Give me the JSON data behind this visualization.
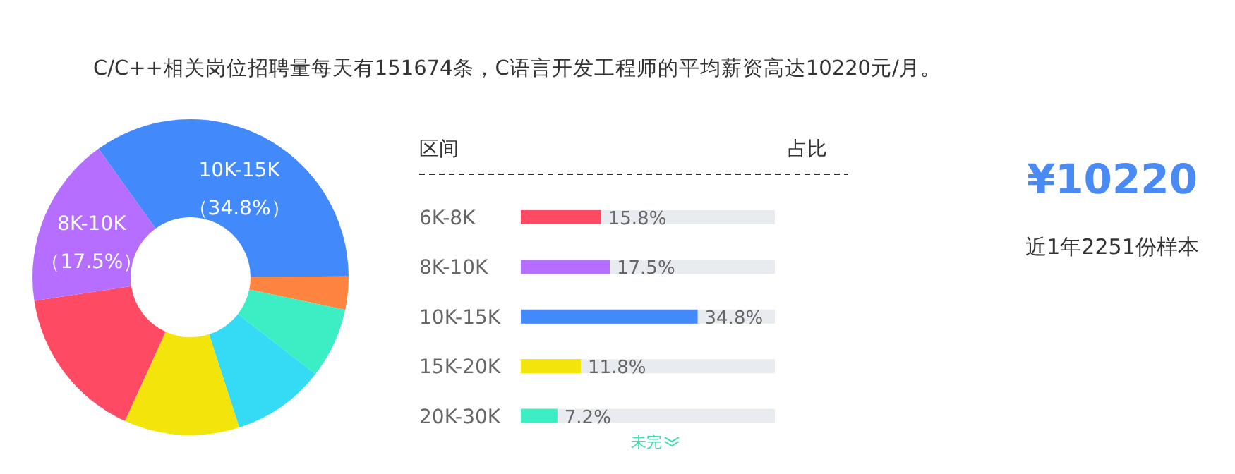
{
  "chart_data": [
    {
      "type": "donut",
      "title": "C/C++相关岗位招聘量每天有151674条，C语言开发工程师的平均薪资高达10220元/月。",
      "categories": [
        "10K-15K",
        null,
        null,
        null,
        null,
        null,
        "8K-10K"
      ],
      "values": [
        34.8,
        3.4,
        7.2,
        9.5,
        11.8,
        15.8,
        17.5
      ],
      "colors": [
        "#4289fb",
        "#ff8440",
        "#3beec3",
        "#35dbf4",
        "#f3e40b",
        "#ff4a64",
        "#b56eff"
      ],
      "value_labels": [
        "（34.8%）",
        null,
        null,
        null,
        null,
        null,
        "（17.5%）"
      ]
    },
    {
      "type": "bar",
      "orientation": "horizontal",
      "ylabel": "区间",
      "xlabel": "占比",
      "categories": [
        "6K-8K",
        "8K-10K",
        "10K-15K",
        "15K-20K",
        "20K-30K"
      ],
      "values": [
        15.8,
        17.5,
        34.8,
        11.8,
        7.2
      ],
      "colors": [
        "#ff4a64",
        "#b56eff",
        "#4289fb",
        "#f3e40b",
        "#3beec3"
      ],
      "value_labels": [
        "15.8%",
        "17.5%",
        "34.8%",
        "11.8%",
        "7.2%"
      ],
      "xlim": [
        0,
        50
      ],
      "annotations": [
        "未完"
      ]
    },
    {
      "type": "other",
      "title": "¥10220",
      "subtitle": "近1年2251份样本"
    }
  ]
}
